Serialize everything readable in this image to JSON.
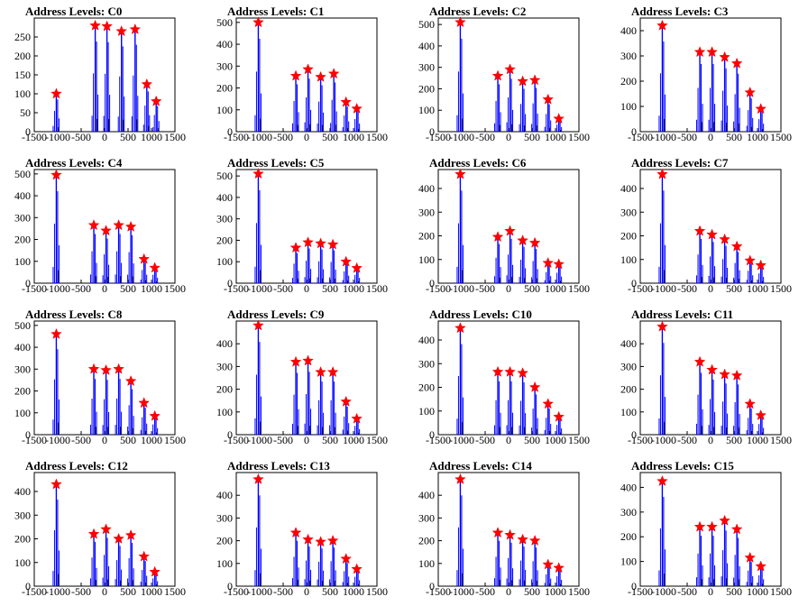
{
  "colors": {
    "bar": "#0000ff",
    "marker": "#ff0000",
    "background": "#ffffff",
    "axis": "#000000"
  },
  "chart_data": [
    {
      "type": "bar",
      "title": "Address Levels: C0",
      "xlim": [
        -1500,
        1500
      ],
      "ylim": [
        0,
        300
      ],
      "yticks": [
        0,
        50,
        100,
        150,
        200,
        250
      ],
      "xticks": [
        -1500,
        -1000,
        -500,
        0,
        500,
        1000,
        1500
      ],
      "xtick_labels": [
        "-1500",
        "-1000",
        "-500",
        "0",
        "500",
        "1000",
        "1500"
      ],
      "peaks": [
        {
          "x": -1030,
          "y": 100
        },
        {
          "x": -200,
          "y": 280
        },
        {
          "x": 50,
          "y": 278
        },
        {
          "x": 360,
          "y": 265
        },
        {
          "x": 650,
          "y": 270
        },
        {
          "x": 900,
          "y": 125
        },
        {
          "x": 1100,
          "y": 80
        }
      ]
    },
    {
      "type": "bar",
      "title": "Address Levels: C1",
      "xlim": [
        -1500,
        1500
      ],
      "ylim": [
        0,
        520
      ],
      "yticks": [
        0,
        100,
        200,
        300,
        400,
        500
      ],
      "xticks": [
        -1500,
        -1000,
        -500,
        0,
        500,
        1000,
        1500
      ],
      "xtick_labels": [
        "-1500",
        "-1000",
        "-500",
        "0",
        "500",
        "1000",
        "1500"
      ],
      "peaks": [
        {
          "x": -1030,
          "y": 500
        },
        {
          "x": -230,
          "y": 255
        },
        {
          "x": 30,
          "y": 285
        },
        {
          "x": 300,
          "y": 250
        },
        {
          "x": 580,
          "y": 265
        },
        {
          "x": 840,
          "y": 135
        },
        {
          "x": 1070,
          "y": 105
        }
      ]
    },
    {
      "type": "bar",
      "title": "Address Levels: C2",
      "xlim": [
        -1500,
        1500
      ],
      "ylim": [
        0,
        530
      ],
      "yticks": [
        0,
        100,
        200,
        300,
        400,
        500
      ],
      "xticks": [
        -1500,
        -1000,
        -500,
        0,
        500,
        1000,
        1500
      ],
      "xtick_labels": [
        "-1500",
        "-1000",
        "-500",
        "0",
        "500",
        "1000",
        "1500"
      ],
      "peaks": [
        {
          "x": -1030,
          "y": 510
        },
        {
          "x": -230,
          "y": 260
        },
        {
          "x": 30,
          "y": 290
        },
        {
          "x": 300,
          "y": 235
        },
        {
          "x": 560,
          "y": 240
        },
        {
          "x": 840,
          "y": 150
        },
        {
          "x": 1070,
          "y": 60
        }
      ]
    },
    {
      "type": "bar",
      "title": "Address Levels: C3",
      "xlim": [
        -1500,
        1500
      ],
      "ylim": [
        0,
        450
      ],
      "yticks": [
        0,
        100,
        200,
        300,
        400
      ],
      "xticks": [
        -1500,
        -1000,
        -500,
        0,
        500,
        1000,
        1500
      ],
      "xtick_labels": [
        "-1500",
        "-1000",
        "-500",
        "0",
        "500",
        "1000",
        "1500"
      ],
      "peaks": [
        {
          "x": -1030,
          "y": 420
        },
        {
          "x": -230,
          "y": 315
        },
        {
          "x": 30,
          "y": 315
        },
        {
          "x": 300,
          "y": 295
        },
        {
          "x": 560,
          "y": 270
        },
        {
          "x": 840,
          "y": 155
        },
        {
          "x": 1070,
          "y": 90
        }
      ]
    },
    {
      "type": "bar",
      "title": "Address Levels: C4",
      "xlim": [
        -1500,
        1500
      ],
      "ylim": [
        0,
        520
      ],
      "yticks": [
        0,
        100,
        200,
        300,
        400,
        500
      ],
      "xticks": [
        -1500,
        -1000,
        -500,
        0,
        500,
        1000,
        1500
      ],
      "xtick_labels": [
        "-1500",
        "-1000",
        "-500",
        "0",
        "500",
        "1000",
        "1500"
      ],
      "peaks": [
        {
          "x": -1030,
          "y": 495
        },
        {
          "x": -230,
          "y": 265
        },
        {
          "x": 30,
          "y": 240
        },
        {
          "x": 300,
          "y": 265
        },
        {
          "x": 560,
          "y": 258
        },
        {
          "x": 840,
          "y": 110
        },
        {
          "x": 1070,
          "y": 70
        }
      ]
    },
    {
      "type": "bar",
      "title": "Address Levels: C5",
      "xlim": [
        -1500,
        1500
      ],
      "ylim": [
        0,
        530
      ],
      "yticks": [
        0,
        100,
        200,
        300,
        400,
        500
      ],
      "xticks": [
        -1500,
        -1000,
        -500,
        0,
        500,
        1000,
        1500
      ],
      "xtick_labels": [
        "-1500",
        "-1000",
        "-500",
        "0",
        "500",
        "1000",
        "1500"
      ],
      "peaks": [
        {
          "x": -1030,
          "y": 510
        },
        {
          "x": -230,
          "y": 165
        },
        {
          "x": 30,
          "y": 190
        },
        {
          "x": 300,
          "y": 185
        },
        {
          "x": 560,
          "y": 180
        },
        {
          "x": 840,
          "y": 100
        },
        {
          "x": 1070,
          "y": 70
        }
      ]
    },
    {
      "type": "bar",
      "title": "Address Levels: C6",
      "xlim": [
        -1500,
        1500
      ],
      "ylim": [
        0,
        480
      ],
      "yticks": [
        0,
        100,
        200,
        300,
        400
      ],
      "xticks": [
        -1500,
        -1000,
        -500,
        0,
        500,
        1000,
        1500
      ],
      "xtick_labels": [
        "-1500",
        "-1000",
        "-500",
        "0",
        "500",
        "1000",
        "1500"
      ],
      "peaks": [
        {
          "x": -1030,
          "y": 460
        },
        {
          "x": -230,
          "y": 195
        },
        {
          "x": 30,
          "y": 220
        },
        {
          "x": 300,
          "y": 180
        },
        {
          "x": 560,
          "y": 170
        },
        {
          "x": 840,
          "y": 85
        },
        {
          "x": 1070,
          "y": 80
        }
      ]
    },
    {
      "type": "bar",
      "title": "Address Levels: C7",
      "xlim": [
        -1500,
        1500
      ],
      "ylim": [
        0,
        480
      ],
      "yticks": [
        0,
        100,
        200,
        300,
        400
      ],
      "xticks": [
        -1500,
        -1000,
        -500,
        0,
        500,
        1000,
        1500
      ],
      "xtick_labels": [
        "-1500",
        "-1000",
        "-500",
        "0",
        "500",
        "1000",
        "1500"
      ],
      "peaks": [
        {
          "x": -1030,
          "y": 460
        },
        {
          "x": -230,
          "y": 220
        },
        {
          "x": 30,
          "y": 205
        },
        {
          "x": 300,
          "y": 185
        },
        {
          "x": 560,
          "y": 155
        },
        {
          "x": 840,
          "y": 95
        },
        {
          "x": 1070,
          "y": 75
        }
      ]
    },
    {
      "type": "bar",
      "title": "Address Levels: C8",
      "xlim": [
        -1500,
        1500
      ],
      "ylim": [
        0,
        520
      ],
      "yticks": [
        0,
        100,
        200,
        300,
        400,
        500
      ],
      "xticks": [
        -1500,
        -1000,
        -500,
        0,
        500,
        1000,
        1500
      ],
      "xtick_labels": [
        "-1500",
        "-1000",
        "-500",
        "0",
        "500",
        "1000",
        "1500"
      ],
      "peaks": [
        {
          "x": -1030,
          "y": 460
        },
        {
          "x": -230,
          "y": 300
        },
        {
          "x": 30,
          "y": 295
        },
        {
          "x": 300,
          "y": 300
        },
        {
          "x": 560,
          "y": 245
        },
        {
          "x": 840,
          "y": 145
        },
        {
          "x": 1070,
          "y": 85
        }
      ]
    },
    {
      "type": "bar",
      "title": "Address Levels: C9",
      "xlim": [
        -1500,
        1500
      ],
      "ylim": [
        0,
        500
      ],
      "yticks": [
        0,
        100,
        200,
        300,
        400
      ],
      "xticks": [
        -1500,
        -1000,
        -500,
        0,
        500,
        1000,
        1500
      ],
      "xtick_labels": [
        "-1500",
        "-1000",
        "-500",
        "0",
        "500",
        "1000",
        "1500"
      ],
      "peaks": [
        {
          "x": -1030,
          "y": 480
        },
        {
          "x": -230,
          "y": 320
        },
        {
          "x": 30,
          "y": 325
        },
        {
          "x": 300,
          "y": 275
        },
        {
          "x": 560,
          "y": 275
        },
        {
          "x": 840,
          "y": 145
        },
        {
          "x": 1070,
          "y": 70
        }
      ]
    },
    {
      "type": "bar",
      "title": "Address Levels: C10",
      "xlim": [
        -1500,
        1500
      ],
      "ylim": [
        0,
        480
      ],
      "yticks": [
        0,
        100,
        200,
        300,
        400
      ],
      "xticks": [
        -1500,
        -1000,
        -500,
        0,
        500,
        1000,
        1500
      ],
      "xtick_labels": [
        "-1500",
        "-1000",
        "-500",
        "0",
        "500",
        "1000",
        "1500"
      ],
      "peaks": [
        {
          "x": -1030,
          "y": 450
        },
        {
          "x": -230,
          "y": 265
        },
        {
          "x": 30,
          "y": 265
        },
        {
          "x": 300,
          "y": 260
        },
        {
          "x": 560,
          "y": 200
        },
        {
          "x": 840,
          "y": 130
        },
        {
          "x": 1070,
          "y": 75
        }
      ]
    },
    {
      "type": "bar",
      "title": "Address Levels: C11",
      "xlim": [
        -1500,
        1500
      ],
      "ylim": [
        0,
        500
      ],
      "yticks": [
        0,
        100,
        200,
        300,
        400
      ],
      "xticks": [
        -1500,
        -1000,
        -500,
        0,
        500,
        1000,
        1500
      ],
      "xtick_labels": [
        "-1500",
        "-1000",
        "-500",
        "0",
        "500",
        "1000",
        "1500"
      ],
      "peaks": [
        {
          "x": -1030,
          "y": 475
        },
        {
          "x": -230,
          "y": 320
        },
        {
          "x": 30,
          "y": 285
        },
        {
          "x": 300,
          "y": 265
        },
        {
          "x": 560,
          "y": 260
        },
        {
          "x": 840,
          "y": 135
        },
        {
          "x": 1070,
          "y": 85
        }
      ]
    },
    {
      "type": "bar",
      "title": "Address Levels: C12",
      "xlim": [
        -1500,
        1500
      ],
      "ylim": [
        0,
        480
      ],
      "yticks": [
        0,
        100,
        200,
        300,
        400
      ],
      "xticks": [
        -1500,
        -1000,
        -500,
        0,
        500,
        1000,
        1500
      ],
      "xtick_labels": [
        "-1500",
        "-1000",
        "-500",
        "0",
        "500",
        "1000",
        "1500"
      ],
      "peaks": [
        {
          "x": -1030,
          "y": 430
        },
        {
          "x": -230,
          "y": 220
        },
        {
          "x": 30,
          "y": 240
        },
        {
          "x": 300,
          "y": 200
        },
        {
          "x": 560,
          "y": 215
        },
        {
          "x": 840,
          "y": 125
        },
        {
          "x": 1070,
          "y": 60
        }
      ]
    },
    {
      "type": "bar",
      "title": "Address Levels: C13",
      "xlim": [
        -1500,
        1500
      ],
      "ylim": [
        0,
        500
      ],
      "yticks": [
        0,
        100,
        200,
        300,
        400
      ],
      "xticks": [
        -1500,
        -1000,
        -500,
        0,
        500,
        1000,
        1500
      ],
      "xtick_labels": [
        "-1500",
        "-1000",
        "-500",
        "0",
        "500",
        "1000",
        "1500"
      ],
      "peaks": [
        {
          "x": -1030,
          "y": 470
        },
        {
          "x": -230,
          "y": 235
        },
        {
          "x": 30,
          "y": 205
        },
        {
          "x": 300,
          "y": 195
        },
        {
          "x": 560,
          "y": 200
        },
        {
          "x": 840,
          "y": 120
        },
        {
          "x": 1070,
          "y": 75
        }
      ]
    },
    {
      "type": "bar",
      "title": "Address Levels: C14",
      "xlim": [
        -1500,
        1500
      ],
      "ylim": [
        0,
        500
      ],
      "yticks": [
        0,
        100,
        200,
        300,
        400
      ],
      "xticks": [
        -1500,
        -1000,
        -500,
        0,
        500,
        1000,
        1500
      ],
      "xtick_labels": [
        "-1500",
        "-1000",
        "-500",
        "0",
        "500",
        "1000",
        "1500"
      ],
      "peaks": [
        {
          "x": -1030,
          "y": 470
        },
        {
          "x": -230,
          "y": 235
        },
        {
          "x": 30,
          "y": 225
        },
        {
          "x": 300,
          "y": 205
        },
        {
          "x": 560,
          "y": 200
        },
        {
          "x": 840,
          "y": 95
        },
        {
          "x": 1070,
          "y": 80
        }
      ]
    },
    {
      "type": "bar",
      "title": "Address Levels: C15",
      "xlim": [
        -1500,
        1500
      ],
      "ylim": [
        0,
        460
      ],
      "yticks": [
        0,
        100,
        200,
        300,
        400
      ],
      "xticks": [
        -1500,
        -1000,
        -500,
        0,
        500,
        1000,
        1500
      ],
      "xtick_labels": [
        "-1500",
        "-1000",
        "-500",
        "0",
        "500",
        "1000",
        "1500"
      ],
      "peaks": [
        {
          "x": -1030,
          "y": 425
        },
        {
          "x": -230,
          "y": 240
        },
        {
          "x": 30,
          "y": 240
        },
        {
          "x": 300,
          "y": 265
        },
        {
          "x": 560,
          "y": 230
        },
        {
          "x": 840,
          "y": 115
        },
        {
          "x": 1070,
          "y": 80
        }
      ]
    }
  ]
}
